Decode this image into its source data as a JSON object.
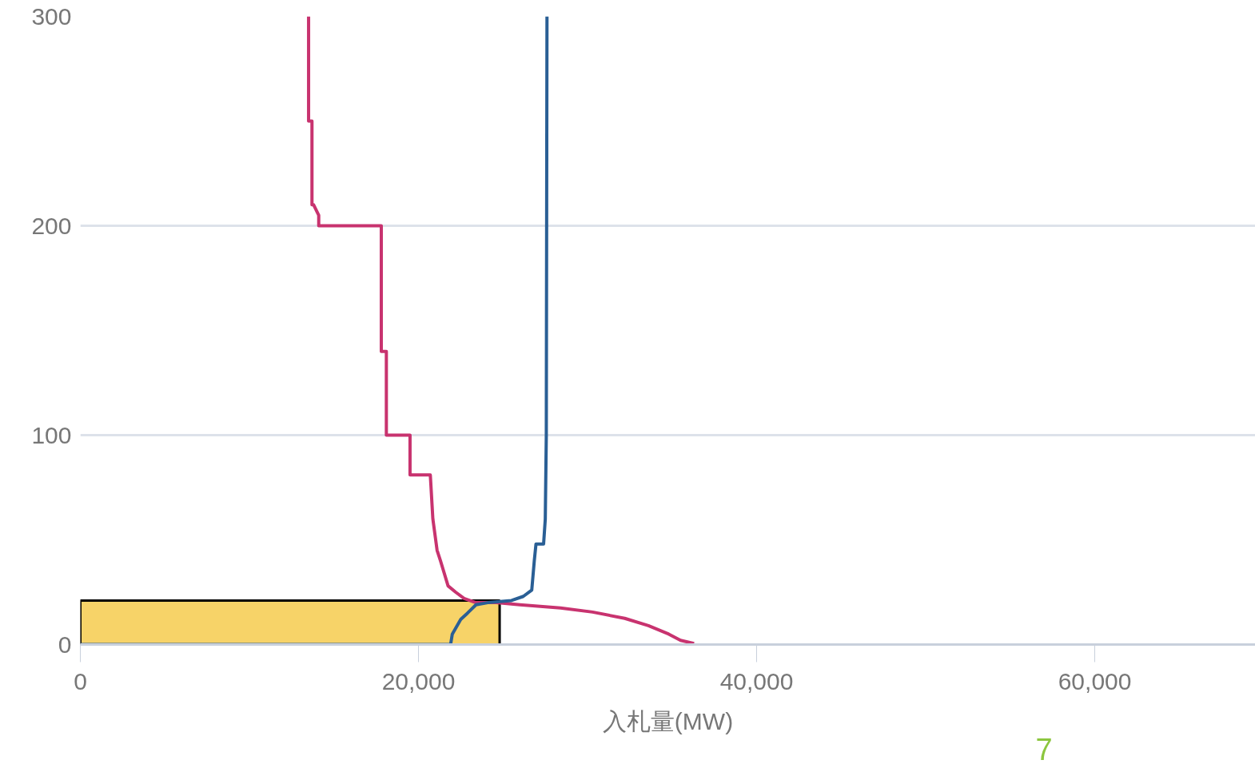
{
  "chart_data": {
    "type": "line",
    "xlabel": "入札量(MW)",
    "xlim": [
      0,
      69500
    ],
    "ylim": [
      0,
      300
    ],
    "xticks": [
      0,
      {
        "value": 20000,
        "label": "20,000"
      },
      {
        "value": 40000,
        "label": "40,000"
      },
      {
        "value": 60000,
        "label": "60,000"
      }
    ],
    "yticks": [
      0,
      100,
      200,
      300
    ],
    "grid": "y",
    "marker": "none",
    "line_style": "solid",
    "series": [
      {
        "color": "#c8336f",
        "x": [
          13500,
          13500,
          13700,
          13700,
          13800,
          14100,
          14100,
          17800,
          17800,
          18100,
          18100,
          19500,
          19500,
          20700,
          20850,
          21100,
          21300,
          21750,
          22200,
          22700,
          23400,
          24600,
          26000,
          28400,
          30300,
          32200,
          33600,
          34800,
          35500,
          36300
        ],
        "values": [
          300,
          250,
          250,
          210,
          210,
          205,
          200,
          200,
          140,
          140,
          100,
          100,
          81,
          81,
          60,
          45,
          40,
          28,
          25,
          22,
          20,
          20,
          19,
          17.5,
          15.5,
          12.5,
          9,
          5,
          2,
          0.5
        ]
      },
      {
        "color": "#2a5f95",
        "x": [
          0,
          21900,
          22000,
          22500,
          22900,
          23400,
          24100,
          25500,
          26200,
          26700,
          26850,
          26950,
          27400,
          27500,
          27560,
          27600
        ],
        "values": [
          0,
          0,
          5,
          12,
          15,
          19,
          20,
          21,
          23,
          26,
          40,
          48,
          48,
          60,
          100,
          300
        ]
      },
      {
        "type": "area",
        "color": "#f5c842",
        "x": [
          0,
          24800
        ],
        "values": [
          21,
          21
        ]
      }
    ],
    "annotations": [
      "7"
    ]
  }
}
